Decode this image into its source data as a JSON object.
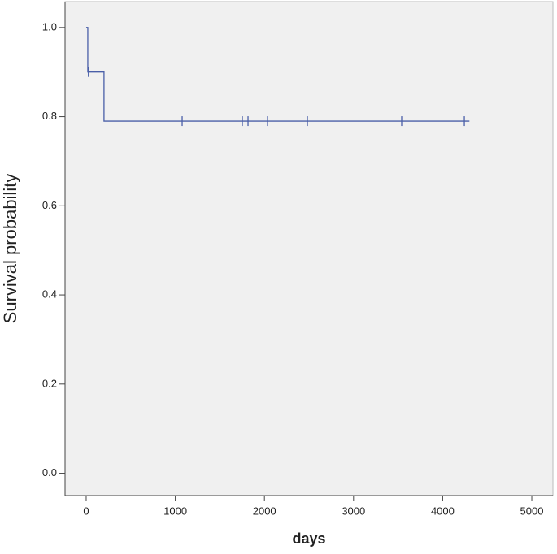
{
  "chart_data": {
    "type": "step",
    "xlabel": "days",
    "ylabel": "Survival probability",
    "x": [
      0,
      18,
      200,
      4300
    ],
    "values": [
      1.0,
      0.9,
      0.79,
      0.79
    ],
    "censored": {
      "x": [
        25,
        1077,
        1752,
        1816,
        2035,
        2482,
        3540,
        4243
      ],
      "values": [
        0.9,
        0.79,
        0.79,
        0.79,
        0.79,
        0.79,
        0.79,
        0.79
      ]
    },
    "color": "#4a5fa8",
    "xlim": [
      -237,
      5237
    ],
    "ylim": [
      -0.05,
      1.058
    ],
    "xticks": [
      0,
      1000,
      2000,
      3000,
      4000,
      5000
    ],
    "yticks": [
      {
        "value": 0,
        "label": "0.0"
      },
      0.2,
      0.4,
      0.6,
      0.8,
      {
        "value": 1,
        "label": "1.0"
      }
    ]
  }
}
